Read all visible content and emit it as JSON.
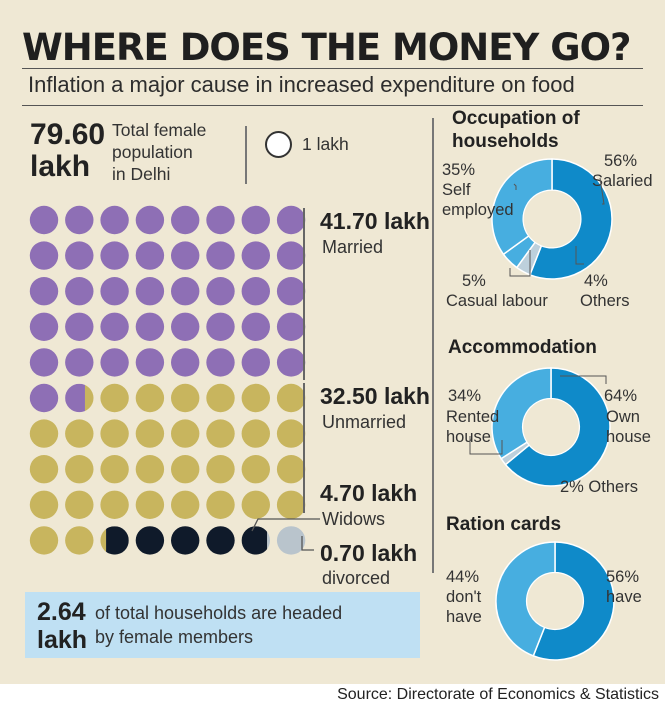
{
  "title": "WHERE DOES THE MONEY GO?",
  "subtitle": "Inflation a major cause in increased expenditure on food",
  "population": {
    "value": "79.60",
    "unit": "lakh",
    "label_lines": [
      "Total female",
      "population",
      "in Delhi"
    ]
  },
  "legend": {
    "label": "1 lakh"
  },
  "colors": {
    "panel": "#efe8d4",
    "married": "#8e6fb5",
    "unmarried": "#c8b55e",
    "widows": "#0f1a2a",
    "divorced": "#b9c4cc",
    "donut_dark": "#0f8ac9",
    "donut_mid": "#47aee0",
    "donut_light": "#bdd0dc",
    "household_box": "#bfe0f3"
  },
  "chart_data": [
    {
      "type": "pictogram",
      "unit": "1 lakh",
      "total": 79.6,
      "categories": [
        "Married",
        "Unmarried",
        "Widows",
        "divorced"
      ],
      "values": [
        41.7,
        32.5,
        4.7,
        0.7
      ],
      "value_labels": [
        "41.70 lakh",
        "32.50 lakh",
        "4.70 lakh",
        "0.70 lakh"
      ]
    },
    {
      "type": "pie",
      "title": "Occupation of households",
      "slices": [
        {
          "label": "Salaried",
          "value": 56,
          "text": "56%"
        },
        {
          "label": "Others",
          "value": 4,
          "text": "4%"
        },
        {
          "label": "Casual labour",
          "value": 5,
          "text": "5%"
        },
        {
          "label": "Self employed",
          "value": 35,
          "text": "35%"
        }
      ]
    },
    {
      "type": "pie",
      "title": "Accommodation",
      "slices": [
        {
          "label": "Own house",
          "value": 64,
          "text": "64%"
        },
        {
          "label": "Others",
          "value": 2,
          "text": "2%"
        },
        {
          "label": "Rented house",
          "value": 34,
          "text": "34%"
        }
      ]
    },
    {
      "type": "pie",
      "title": "Ration cards",
      "slices": [
        {
          "label": "have",
          "value": 56,
          "text": "56%"
        },
        {
          "label": "don't have",
          "value": 44,
          "text": "44%"
        }
      ]
    }
  ],
  "text": {
    "married_value": "41.70 lakh",
    "married_label": "Married",
    "unmarried_value": "32.50 lakh",
    "unmarried_label": "Unmarried",
    "widows_value": "4.70 lakh",
    "widows_label": "Widows",
    "divorced_value": "0.70 lakh",
    "divorced_label": "divorced",
    "occ_title_1": "Occupation of",
    "occ_title_2": "households",
    "occ_self_pct": "35%",
    "occ_self_1": "Self",
    "occ_self_2": "employed",
    "occ_sal_pct": "56%",
    "occ_sal": "Salaried",
    "occ_cas_pct": "5%",
    "occ_cas": "Casual labour",
    "occ_oth_pct": "4%",
    "occ_oth": "Others",
    "acc_title": "Accommodation",
    "acc_rent_pct": "34%",
    "acc_rent_1": "Rented",
    "acc_rent_2": "house",
    "acc_own_pct": "64%",
    "acc_own_1": "Own",
    "acc_own_2": "house",
    "acc_oth": "2% Others",
    "ration_title": "Ration cards",
    "ration_no_pct": "44%",
    "ration_no_1": "don't",
    "ration_no_2": "have",
    "ration_yes_pct": "56%",
    "ration_yes": "have"
  },
  "households": {
    "value_line1": "2.64",
    "value_line2": "lakh",
    "label_line1": "of total households are headed",
    "label_line2": "by female members"
  },
  "source": "Source: Directorate of Economics & Statistics"
}
